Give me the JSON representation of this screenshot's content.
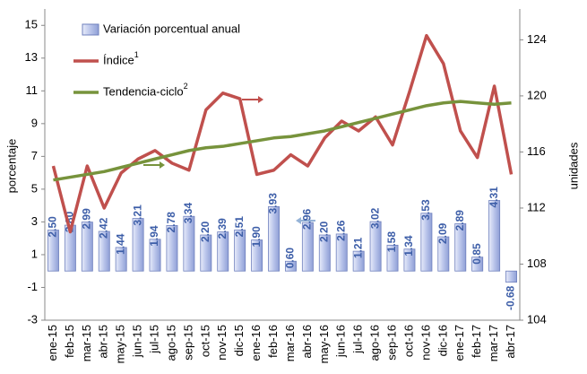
{
  "chart_data": {
    "type": "bar",
    "categories": [
      "ene-15",
      "feb-15",
      "mar-15",
      "abr-15",
      "may-15",
      "jun-15",
      "jul-15",
      "ago-15",
      "sep-15",
      "oct-15",
      "nov-15",
      "dic-15",
      "ene-16",
      "feb-16",
      "mar-16",
      "abr-16",
      "may-16",
      "jun-16",
      "jul-16",
      "ago-16",
      "sep-16",
      "oct-16",
      "nov-16",
      "dic-16",
      "ene-17",
      "feb-17",
      "mar-17",
      "abr-17"
    ],
    "series": [
      {
        "name": "Variación porcentual anual",
        "type": "bar",
        "color": "#b9c4ea",
        "values": [
          2.5,
          2.8,
          2.99,
          2.42,
          1.44,
          3.21,
          1.94,
          2.78,
          3.34,
          2.2,
          2.39,
          2.51,
          1.9,
          3.93,
          0.6,
          2.96,
          2.2,
          2.26,
          1.21,
          3.02,
          1.58,
          1.34,
          3.53,
          2.09,
          2.89,
          0.85,
          4.31,
          -0.68
        ],
        "value_labels": [
          "2.50",
          "2.80",
          "2.99",
          "2.42",
          "1.44",
          "3.21",
          "1.94",
          "2.78",
          "3.34",
          "2.20",
          "2.39",
          "2.51",
          "1.90",
          "3.93",
          "0.60",
          "2.96",
          "2.20",
          "2.26",
          "1.21",
          "3.02",
          "1.58",
          "1.34",
          "3.53",
          "2.09",
          "2.89",
          "0.85",
          "4.31",
          "-0.68"
        ]
      },
      {
        "name": "Índice",
        "note_mark": "1",
        "type": "line",
        "axis": "y2",
        "color": "#c0504d",
        "values": [
          115.0,
          110.3,
          115.0,
          112.0,
          114.5,
          115.5,
          116.1,
          115.2,
          114.7,
          119.0,
          120.2,
          119.8,
          114.4,
          114.7,
          115.8,
          115.0,
          117.0,
          118.2,
          117.5,
          118.5,
          116.5,
          120.3,
          124.3,
          122.3,
          117.5,
          115.6,
          120.7,
          114.4
        ]
      },
      {
        "name": "Tendencia-ciclo",
        "note_mark": "2",
        "type": "line",
        "axis": "y2",
        "color": "#77933c",
        "values": [
          114.0,
          114.2,
          114.4,
          114.6,
          114.9,
          115.2,
          115.5,
          115.8,
          116.1,
          116.3,
          116.4,
          116.6,
          116.8,
          117.0,
          117.1,
          117.3,
          117.5,
          117.8,
          118.1,
          118.4,
          118.7,
          119.0,
          119.3,
          119.5,
          119.6,
          119.5,
          119.4,
          119.5
        ]
      }
    ],
    "ylabel": "porcentaje",
    "y2label": "unidades",
    "ylim": [
      -3,
      16
    ],
    "yticks": [
      -3,
      -1,
      1,
      3,
      5,
      7,
      9,
      11,
      13,
      15
    ],
    "y2lim": [
      104,
      126.2
    ],
    "y2ticks": [
      104,
      108,
      112,
      116,
      120,
      124
    ]
  }
}
